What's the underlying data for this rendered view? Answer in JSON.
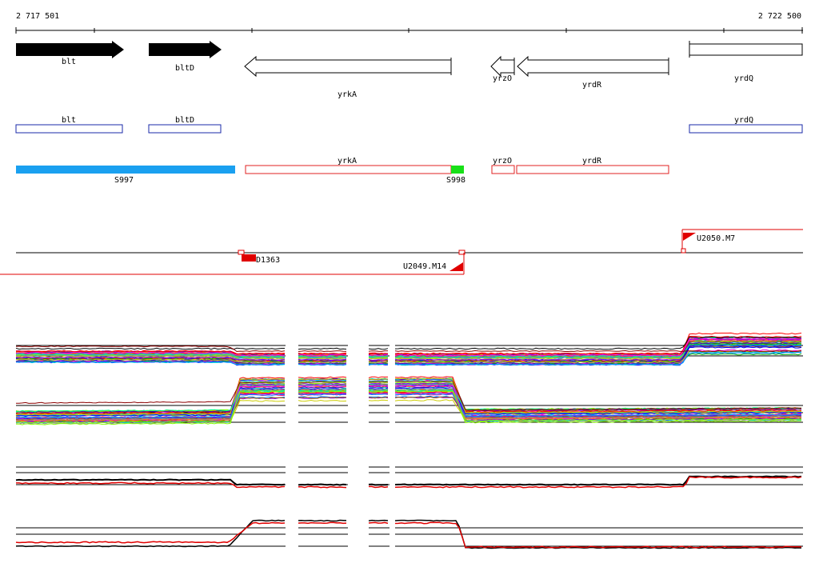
{
  "ruler": {
    "start_label": "2 717 501",
    "end_label": "2 722 500"
  },
  "genes": [
    {
      "label": "blt"
    },
    {
      "label": "bltD"
    },
    {
      "label": "yrkA"
    },
    {
      "label": "yrzO"
    },
    {
      "label": "yrdR"
    },
    {
      "label": "yrdQ"
    }
  ],
  "cds": [
    {
      "label": "blt"
    },
    {
      "label": "bltD"
    },
    {
      "label": "yrdQ"
    }
  ],
  "segments": [
    {
      "label": "yrkA"
    },
    {
      "label": "yrzO"
    },
    {
      "label": "yrdR"
    },
    {
      "label": "S997"
    },
    {
      "label": "S998"
    }
  ],
  "features": [
    {
      "label": "U2050.M7"
    },
    {
      "label": "D1363"
    },
    {
      "label": "U2049.M14"
    }
  ],
  "colors": {
    "gene_fill": "#000000",
    "cds_outline": "#1a2aa8",
    "segment_outline": "#e02020",
    "segment_blue": "#1aa0f0",
    "segment_green": "#18e018",
    "feature_red": "#e00000",
    "profile_black": "#000000",
    "profile_red": "#e00000"
  }
}
